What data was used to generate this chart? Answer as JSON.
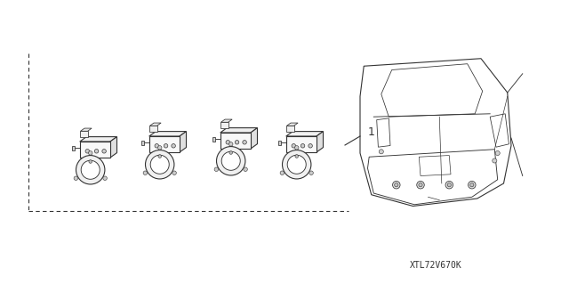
{
  "background_color": "#ffffff",
  "line_color": "#333333",
  "fig_width": 6.4,
  "fig_height": 3.19,
  "dpi": 100,
  "part_number": "XTL72V670K",
  "label_1": "1"
}
